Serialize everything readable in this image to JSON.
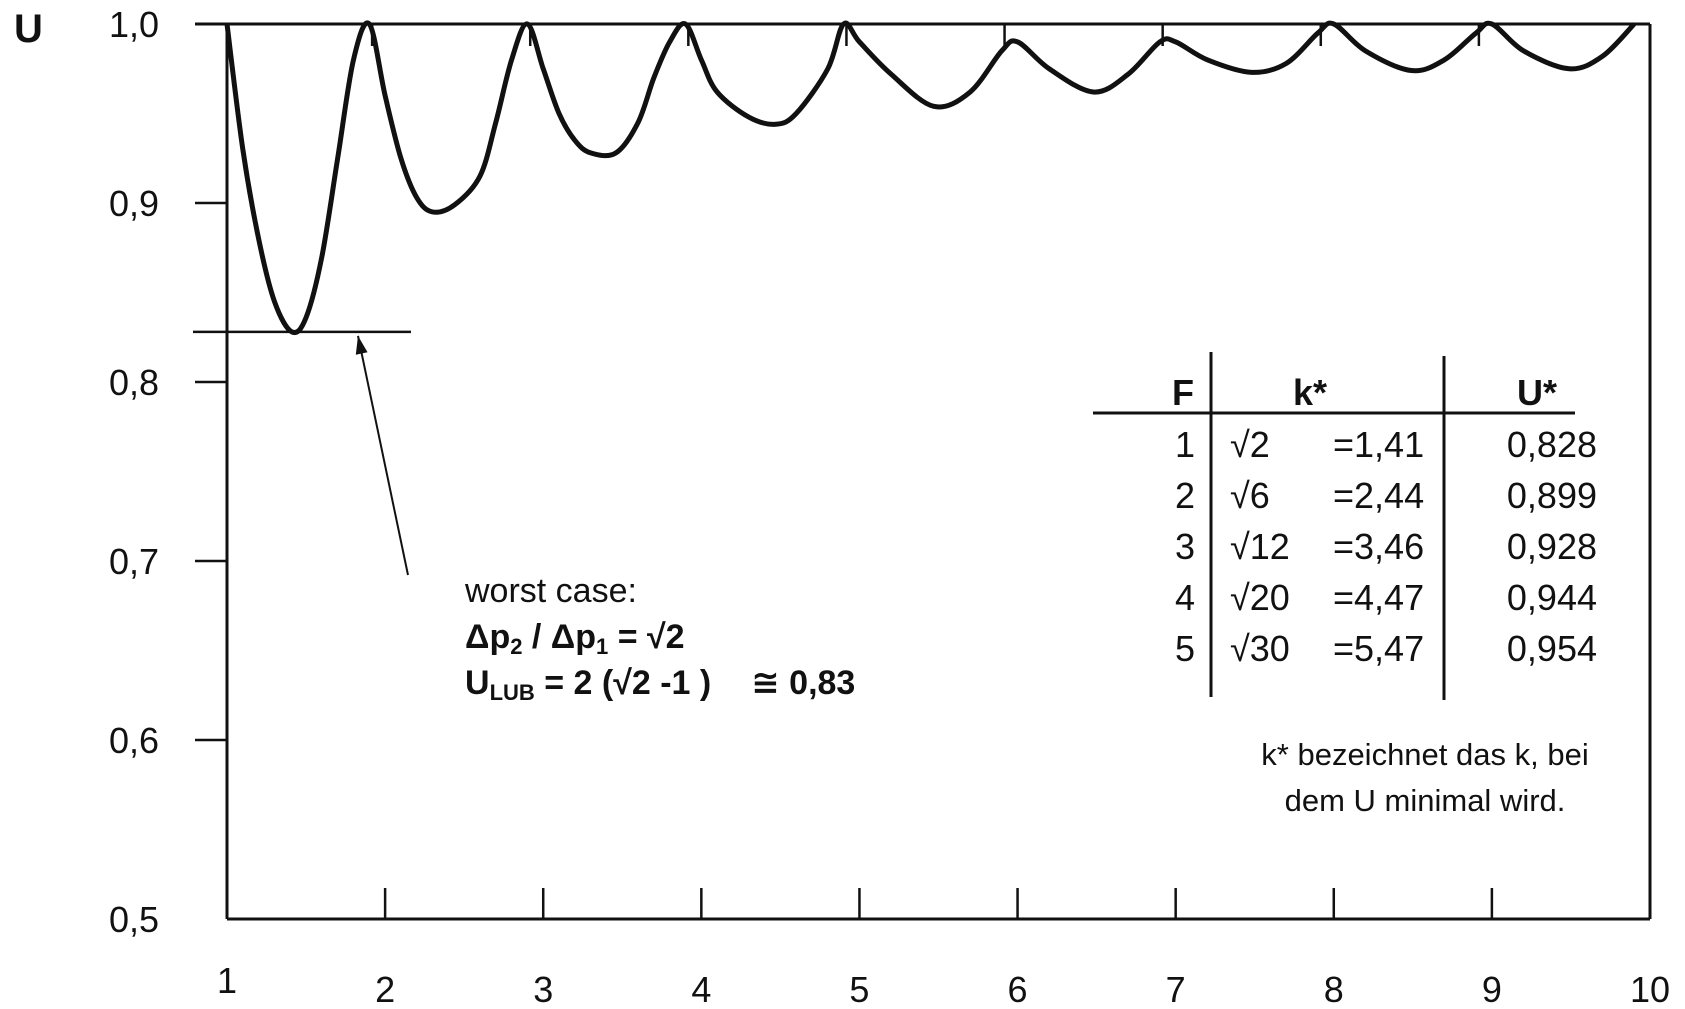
{
  "chart_data": {
    "type": "line",
    "title": "",
    "ylabel": "U",
    "xlabel": "",
    "xlim": [
      1,
      10
    ],
    "ylim": [
      0.5,
      1.0
    ],
    "x_ticks": [
      1,
      2,
      3,
      4,
      5,
      6,
      7,
      8,
      9,
      10
    ],
    "y_ticks": [
      "1,0",
      "0,9",
      "0,8",
      "0,7",
      "0,6",
      "0,5"
    ],
    "y_tick_values": [
      1.0,
      0.9,
      0.8,
      0.7,
      0.6,
      0.5
    ],
    "series": [
      {
        "x": [
          1.0,
          1.1,
          1.2,
          1.3,
          1.41,
          1.5,
          1.6,
          1.7,
          1.8,
          1.9,
          2.0,
          2.1,
          2.2,
          2.3,
          2.44,
          2.6,
          2.7,
          2.8,
          2.9,
          3.0,
          3.1,
          3.2,
          3.3,
          3.46,
          3.6,
          3.7,
          3.8,
          3.9,
          4.0,
          4.1,
          4.3,
          4.47,
          4.6,
          4.8,
          4.9,
          5.0,
          5.2,
          5.47,
          5.7,
          5.9,
          6.0,
          6.2,
          6.48,
          6.7,
          6.9,
          7.0,
          7.2,
          7.48,
          7.7,
          7.9,
          8.0,
          8.2,
          8.49,
          8.7,
          8.9,
          9.0,
          9.2,
          9.49,
          9.7,
          9.9
        ],
        "values": [
          1.0,
          0.93,
          0.88,
          0.845,
          0.828,
          0.836,
          0.87,
          0.925,
          0.98,
          1.0,
          0.96,
          0.925,
          0.903,
          0.895,
          0.899,
          0.915,
          0.945,
          0.98,
          1.0,
          0.975,
          0.95,
          0.935,
          0.928,
          0.928,
          0.945,
          0.97,
          0.99,
          1.0,
          0.98,
          0.962,
          0.948,
          0.944,
          0.95,
          0.975,
          1.0,
          0.99,
          0.972,
          0.954,
          0.962,
          0.985,
          0.99,
          0.975,
          0.962,
          0.972,
          0.99,
          0.99,
          0.98,
          0.973,
          0.978,
          0.995,
          1.0,
          0.985,
          0.974,
          0.98,
          0.995,
          1.0,
          0.985,
          0.975,
          0.982,
          1.0
        ]
      }
    ],
    "worst_case_level": 0.828,
    "annotation": {
      "line1": "worst case:",
      "line2_left": "Δp",
      "line2_sub1": "2",
      "line2_mid": " / Δp",
      "line2_sub2": "1",
      "line2_right": " = √2",
      "line3_left": "U",
      "line3_sub": "LUB",
      "line3_mid": " = 2 (√2 -1 )",
      "line3_right": "≅ 0,83"
    },
    "table": {
      "headers": [
        "F",
        "k*",
        "U*"
      ],
      "rows": [
        [
          "1",
          "√2",
          "=1,41",
          "0,828"
        ],
        [
          "2",
          "√6",
          "=2,44",
          "0,899"
        ],
        [
          "3",
          "√12",
          "=3,46",
          "0,928"
        ],
        [
          "4",
          "√20",
          "=4,47",
          "0,944"
        ],
        [
          "5",
          "√30",
          "=5,47",
          "0,954"
        ]
      ]
    },
    "footnote": {
      "line1": "k* bezeichnet das k, bei",
      "line2": "dem U minimal wird."
    }
  }
}
